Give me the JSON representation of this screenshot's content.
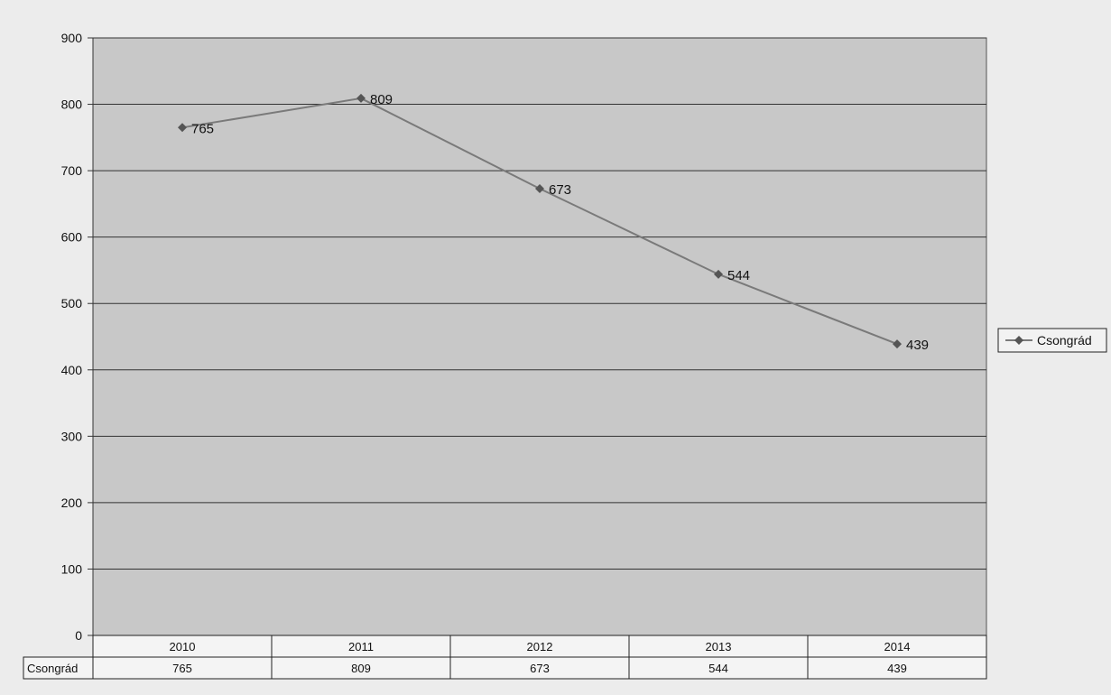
{
  "chart_data": {
    "type": "line",
    "categories": [
      "2010",
      "2011",
      "2012",
      "2013",
      "2014"
    ],
    "series": [
      {
        "name": "Csongrád",
        "values": [
          765,
          809,
          673,
          544,
          439
        ]
      }
    ],
    "ylim": [
      0,
      900
    ],
    "yticks": [
      "0",
      "100",
      "200",
      "300",
      "400",
      "500",
      "600",
      "700",
      "800",
      "900"
    ],
    "ytick_values": [
      0,
      100,
      200,
      300,
      400,
      500,
      600,
      700,
      800,
      900
    ],
    "grid": true,
    "legend": "right",
    "data_table": true,
    "data_labels": [
      "765",
      "809",
      "673",
      "544",
      "439"
    ],
    "colors": {
      "plot_bg": "#c8c8c8",
      "page_bg": "#ececec",
      "line": "#7a7a7a",
      "marker": "#555555",
      "grid": "#333333",
      "text": "#111111"
    }
  }
}
